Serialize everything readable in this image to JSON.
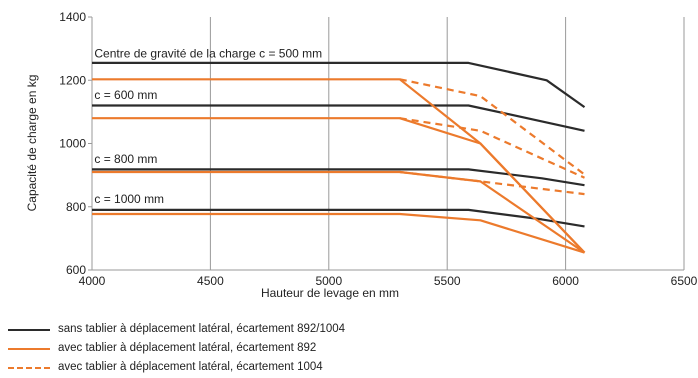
{
  "chart_data": {
    "type": "line",
    "xlabel": "Hauteur de levage en mm",
    "ylabel": "Capacité de charge en kg",
    "xlim": [
      4000,
      6500
    ],
    "ylim": [
      600,
      1400
    ],
    "xticks": [
      "4000",
      "4500",
      "5000",
      "5500",
      "6000",
      "6500"
    ],
    "yticks": [
      "600",
      "800",
      "1000",
      "1200",
      "1400"
    ],
    "grid": "vertical",
    "colors": {
      "black": "#2b2b2b",
      "orange": "#ec7a2c"
    },
    "annotations": [
      {
        "text": "Centre de gravité de la charge c = 500 mm",
        "x": 4010,
        "y": 1260
      },
      {
        "text": "c = 600 mm",
        "x": 4010,
        "y": 1128
      },
      {
        "text": "c = 800 mm",
        "x": 4010,
        "y": 925
      },
      {
        "text": "c = 1000 mm",
        "x": 4010,
        "y": 800
      }
    ],
    "series": [
      {
        "group": "black",
        "style": "solid",
        "x": [
          4000,
          5590,
          5920,
          6080
        ],
        "y": [
          1255,
          1255,
          1200,
          1115
        ]
      },
      {
        "group": "black",
        "style": "solid",
        "x": [
          4000,
          5590,
          5900,
          6080
        ],
        "y": [
          1120,
          1120,
          1070,
          1040
        ]
      },
      {
        "group": "black",
        "style": "solid",
        "x": [
          4000,
          5590,
          5900,
          6080
        ],
        "y": [
          918,
          918,
          890,
          868
        ]
      },
      {
        "group": "black",
        "style": "solid",
        "x": [
          4000,
          5590,
          5900,
          6080
        ],
        "y": [
          790,
          790,
          760,
          738
        ]
      },
      {
        "group": "orange",
        "style": "solid",
        "x": [
          4000,
          5300,
          5640,
          6080
        ],
        "y": [
          1203,
          1203,
          1000,
          655
        ]
      },
      {
        "group": "orange",
        "style": "solid",
        "x": [
          4000,
          5300,
          5640,
          6080
        ],
        "y": [
          1080,
          1080,
          1000,
          655
        ]
      },
      {
        "group": "orange",
        "style": "solid",
        "x": [
          4000,
          5300,
          5640,
          6080
        ],
        "y": [
          910,
          910,
          880,
          655
        ]
      },
      {
        "group": "orange",
        "style": "solid",
        "x": [
          4000,
          5300,
          5640,
          6080
        ],
        "y": [
          777,
          777,
          757,
          655
        ]
      },
      {
        "group": "orange",
        "style": "dashed",
        "x": [
          5300,
          5640,
          6080
        ],
        "y": [
          1203,
          1150,
          902
        ]
      },
      {
        "group": "orange",
        "style": "dashed",
        "x": [
          5300,
          5640,
          6080
        ],
        "y": [
          1080,
          1040,
          892
        ]
      },
      {
        "group": "orange",
        "style": "dashed",
        "x": [
          5300,
          5640,
          6080
        ],
        "y": [
          910,
          880,
          840
        ]
      }
    ]
  },
  "legend": {
    "items": [
      {
        "label": "sans tablier à déplacement latéral, écartement 892/1004",
        "color": "#2b2b2b",
        "style": "solid"
      },
      {
        "label": "avec tablier à déplacement latéral, écartement 892",
        "color": "#ec7a2c",
        "style": "solid"
      },
      {
        "label": "avec tablier à déplacement latéral, écartement 1004",
        "color": "#ec7a2c",
        "style": "dashed"
      }
    ]
  }
}
